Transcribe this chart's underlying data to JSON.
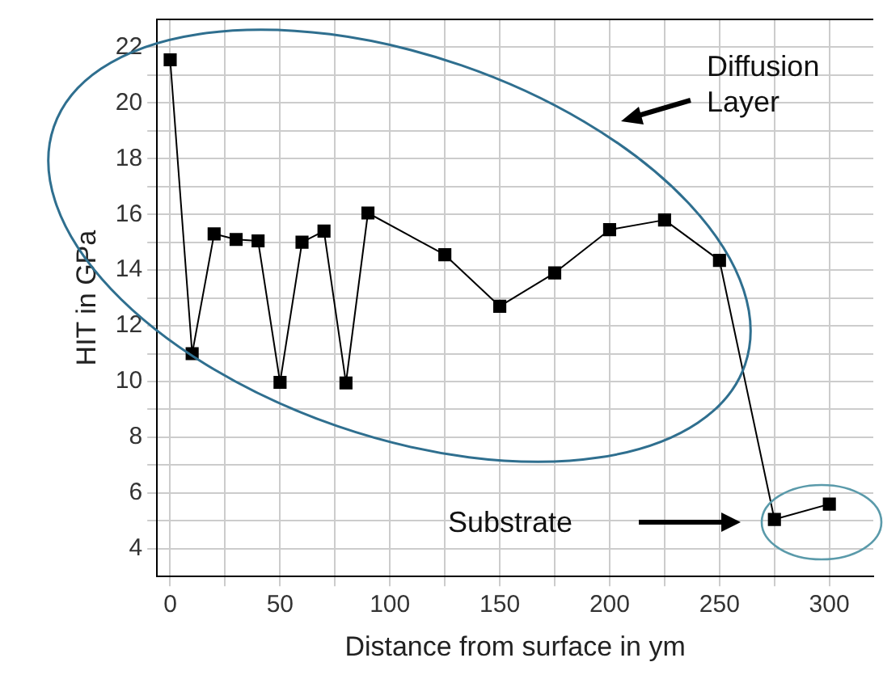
{
  "chart_data": {
    "type": "line",
    "xlabel": "Distance from surface in ym",
    "ylabel": "HIT in GPa",
    "x": [
      0,
      10,
      20,
      30,
      40,
      50,
      60,
      70,
      80,
      90,
      125,
      150,
      175,
      200,
      225,
      250,
      275,
      300
    ],
    "series": [
      {
        "color": "#000000",
        "values": [
          21.55,
          11.0,
          15.3,
          15.1,
          15.05,
          9.97,
          15.0,
          15.4,
          9.95,
          16.05,
          14.55,
          12.7,
          13.9,
          15.45,
          15.8,
          14.35,
          5.05,
          5.6
        ]
      }
    ],
    "xlim": [
      -6,
      320
    ],
    "xticks": [
      0,
      {
        "value": 25,
        "label": null
      },
      50,
      {
        "value": 75,
        "label": null
      },
      100,
      {
        "value": 125,
        "label": null
      },
      150,
      {
        "value": 175,
        "label": null
      },
      200,
      {
        "value": 225,
        "label": null
      },
      250,
      {
        "value": 275,
        "label": null
      },
      300
    ],
    "ylim": [
      3,
      23
    ],
    "yticks": [
      4,
      {
        "value": 5,
        "label": null
      },
      6,
      {
        "value": 7,
        "label": null
      },
      8,
      {
        "value": 9,
        "label": null
      },
      10,
      {
        "value": 11,
        "label": null
      },
      12,
      {
        "value": 13,
        "label": null
      },
      14,
      {
        "value": 15,
        "label": null
      },
      16,
      {
        "value": 17,
        "label": null
      },
      18,
      {
        "value": 19,
        "label": null
      },
      20,
      {
        "value": 21,
        "label": null
      },
      22
    ],
    "grid": true,
    "marker": "square",
    "line_style": "solid",
    "legend": false,
    "annotations": [
      "Diffusion Layer",
      "Substrate"
    ]
  }
}
